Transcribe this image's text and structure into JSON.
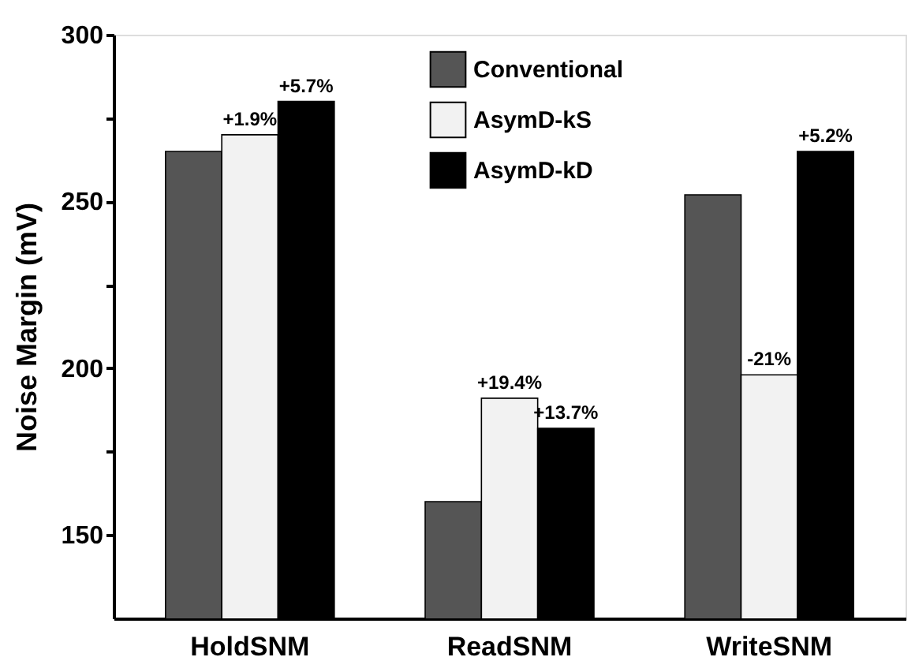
{
  "chart_data": {
    "type": "bar",
    "ylabel": "Noise Margin (mV)",
    "categories": [
      "HoldSNM",
      "ReadSNM",
      "WriteSNM"
    ],
    "series": [
      {
        "name": "Conventional",
        "color": "#555555",
        "values": [
          265,
          160,
          252
        ]
      },
      {
        "name": "AsymD-kS",
        "color": "#f2f2f2",
        "values": [
          270,
          191,
          198
        ]
      },
      {
        "name": "AsymD-kD",
        "color": "#000000",
        "values": [
          280,
          182,
          265
        ]
      }
    ],
    "annotations": [
      "+1.9%",
      "+5.7%",
      "+19.4%",
      "+13.7%",
      "-21%",
      "+5.2%"
    ],
    "ylim": [
      125,
      300
    ],
    "yticks": [
      150,
      {
        "value": 175,
        "label": null
      },
      200,
      {
        "value": 225,
        "label": null
      },
      250,
      {
        "value": 275,
        "label": null
      },
      300
    ],
    "grid": false,
    "legend": "top"
  }
}
